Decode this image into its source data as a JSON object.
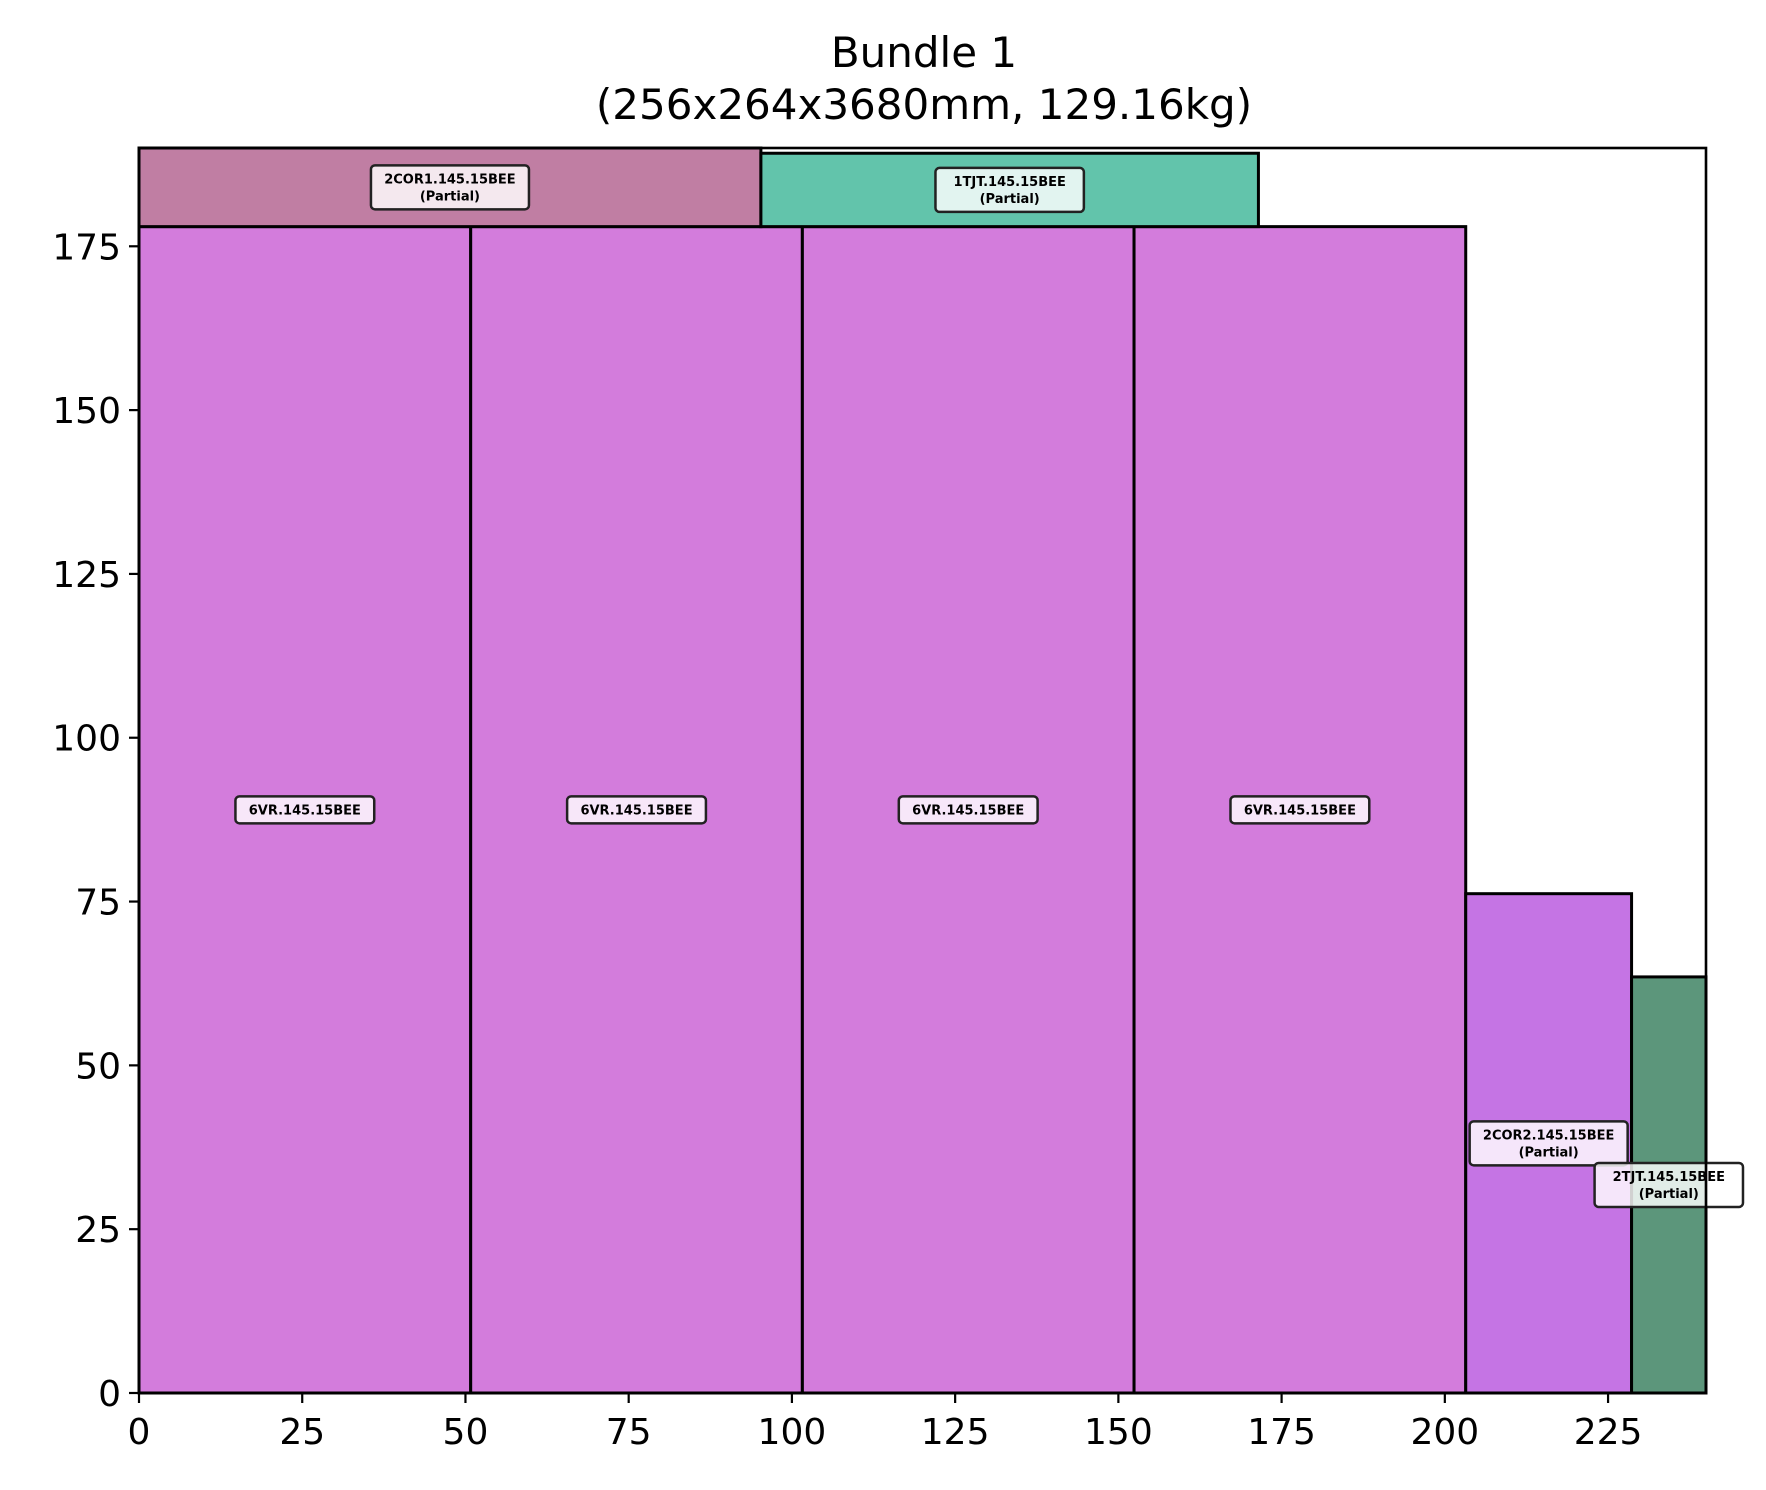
{
  "chart_data": {
    "type": "bar",
    "title": "Bundle 1",
    "subtitle": "(256x264x3680mm, 129.16kg)",
    "xlabel": "",
    "ylabel": "",
    "xlim": [
      0,
      240
    ],
    "ylim": [
      0,
      190
    ],
    "xticks": [
      0,
      25,
      50,
      75,
      100,
      125,
      150,
      175,
      200,
      225
    ],
    "yticks": [
      0,
      25,
      50,
      75,
      100,
      125,
      150,
      175
    ],
    "grid": false,
    "rects": [
      {
        "label": "6VR.145.15BEE",
        "partial": "",
        "x0": 0,
        "x1": 50.8,
        "y0": 0,
        "y1": 178,
        "color": "#d37cdc"
      },
      {
        "label": "6VR.145.15BEE",
        "partial": "",
        "x0": 50.8,
        "x1": 101.6,
        "y0": 0,
        "y1": 178,
        "color": "#d37cdc"
      },
      {
        "label": "6VR.145.15BEE",
        "partial": "",
        "x0": 101.6,
        "x1": 152.4,
        "y0": 0,
        "y1": 178,
        "color": "#d37cdc"
      },
      {
        "label": "6VR.145.15BEE",
        "partial": "",
        "x0": 152.4,
        "x1": 203.2,
        "y0": 0,
        "y1": 178,
        "color": "#d37cdc"
      },
      {
        "label": "2COR2.145.15BEE",
        "partial": "(Partial)",
        "x0": 203.2,
        "x1": 228.6,
        "y0": 0,
        "y1": 76.2,
        "color": "#c574e4"
      },
      {
        "label": "2TJT.145.15BEE",
        "partial": "(Partial)",
        "x0": 228.6,
        "x1": 240,
        "y0": 0,
        "y1": 63.5,
        "color": "#5c967b"
      },
      {
        "label": "2COR1.145.15BEE",
        "partial": "(Partial)",
        "x0": 0,
        "x1": 95.25,
        "y0": 178,
        "y1": 190.5,
        "color": "#c07ea3"
      },
      {
        "label": "1TJT.145.15BEE",
        "partial": "(Partial)",
        "x0": 95.25,
        "x1": 171.45,
        "y0": 178,
        "y1": 189.2,
        "color": "#62c4ab"
      }
    ]
  }
}
